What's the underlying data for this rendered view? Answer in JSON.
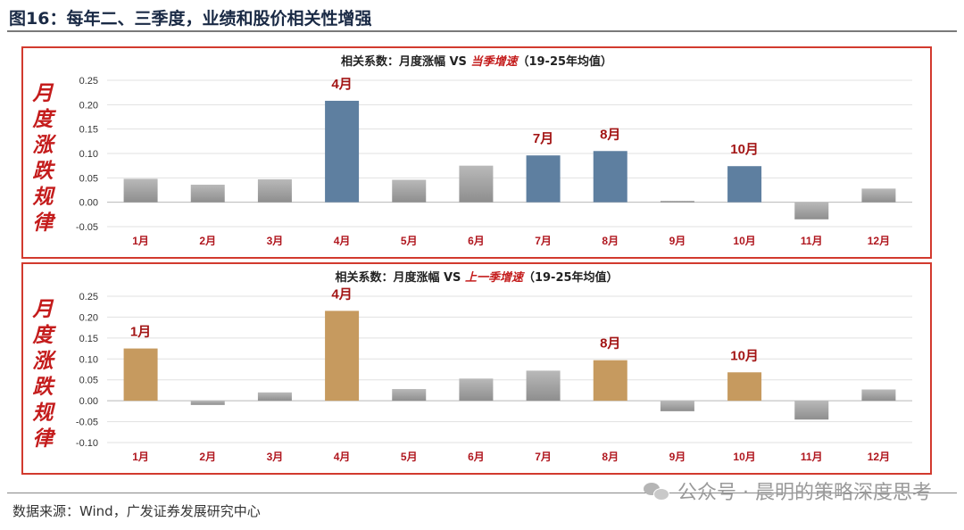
{
  "figure_title": "图16：每年二、三季度，业绩和股价相关性增强",
  "source": "数据来源：Wind，广发证券发展研究中心",
  "watermark": "公众号 · 晨明的策略深度思考",
  "colors": {
    "border": "#d23a2e",
    "highlight_blue": "#5e7fa0",
    "highlight_gold": "#c69a5f",
    "neutral_gray": "#9e9e9e",
    "month_label": "#b0171f",
    "callout": "#a31515"
  },
  "chart_data": [
    {
      "type": "bar",
      "side_label": "月度涨跌规律",
      "title_plain": "相关系数：月度涨幅 VS ",
      "title_emph": "当季增速",
      "title_suffix": "（19-25年均值）",
      "categories": [
        "1月",
        "2月",
        "3月",
        "4月",
        "5月",
        "6月",
        "7月",
        "8月",
        "9月",
        "10月",
        "11月",
        "12月"
      ],
      "values": [
        0.048,
        0.036,
        0.047,
        0.208,
        0.046,
        0.075,
        0.096,
        0.105,
        0.003,
        0.074,
        -0.035,
        0.028
      ],
      "highlight": [
        false,
        false,
        false,
        true,
        false,
        false,
        true,
        true,
        false,
        true,
        false,
        false
      ],
      "highlight_color": "#5e7fa0",
      "annotations": [
        "",
        "",
        "",
        "4月",
        "",
        "",
        "7月",
        "8月",
        "",
        "10月",
        "",
        ""
      ],
      "ylim": [
        -0.05,
        0.25
      ],
      "yticks": [
        -0.05,
        0.0,
        0.05,
        0.1,
        0.15,
        0.2,
        0.25
      ],
      "ytick_labels": [
        "-0.05",
        "0.00",
        "0.05",
        "0.10",
        "0.15",
        "0.20",
        "0.25"
      ],
      "grid": true
    },
    {
      "type": "bar",
      "side_label": "月度涨跌规律",
      "title_plain": "相关系数：月度涨幅 VS ",
      "title_emph": "上一季增速",
      "title_suffix": "（19-25年均值）",
      "categories": [
        "1月",
        "2月",
        "3月",
        "4月",
        "5月",
        "6月",
        "7月",
        "8月",
        "9月",
        "10月",
        "11月",
        "12月"
      ],
      "values": [
        0.125,
        -0.01,
        0.02,
        0.215,
        0.028,
        0.053,
        0.072,
        0.097,
        -0.025,
        0.068,
        -0.045,
        0.027
      ],
      "highlight": [
        true,
        false,
        false,
        true,
        false,
        false,
        false,
        true,
        false,
        true,
        false,
        false
      ],
      "highlight_color": "#c69a5f",
      "annotations": [
        "1月",
        "",
        "",
        "4月",
        "",
        "",
        "",
        "8月",
        "",
        "10月",
        "",
        ""
      ],
      "ylim": [
        -0.1,
        0.25
      ],
      "yticks": [
        -0.1,
        -0.05,
        0.0,
        0.05,
        0.1,
        0.15,
        0.2,
        0.25
      ],
      "ytick_labels": [
        "-0.10",
        "-0.05",
        "0.00",
        "0.05",
        "0.10",
        "0.15",
        "0.20",
        "0.25"
      ],
      "grid": true
    }
  ]
}
